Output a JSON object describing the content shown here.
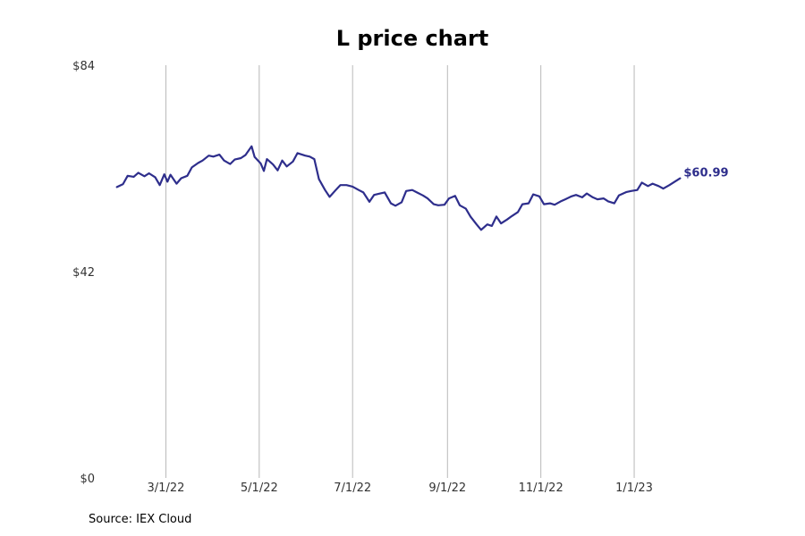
{
  "chart_data": {
    "type": "line",
    "title": "L price chart",
    "xlabel": "",
    "ylabel": "",
    "ylim": [
      0,
      84
    ],
    "yticks": [
      {
        "value": 0,
        "label": "$0"
      },
      {
        "value": 42,
        "label": "$42"
      },
      {
        "value": 84,
        "label": "$84"
      }
    ],
    "xlim": [
      "2022-01-20",
      "2023-03-01"
    ],
    "xticks": [
      {
        "date": "2022-03-01",
        "label": "3/1/22"
      },
      {
        "date": "2022-05-01",
        "label": "5/1/22"
      },
      {
        "date": "2022-07-01",
        "label": "7/1/22"
      },
      {
        "date": "2022-09-01",
        "label": "9/1/22"
      },
      {
        "date": "2022-11-01",
        "label": "11/1/22"
      },
      {
        "date": "2023-01-01",
        "label": "1/1/23"
      }
    ],
    "grid": "vertical",
    "series": [
      {
        "color": "#2e2e8c",
        "end_label": "$60.99",
        "points": [
          [
            "2022-01-28",
            59.2
          ],
          [
            "2022-02-01",
            59.8
          ],
          [
            "2022-02-04",
            61.5
          ],
          [
            "2022-02-08",
            61.3
          ],
          [
            "2022-02-11",
            62.1
          ],
          [
            "2022-02-15",
            61.4
          ],
          [
            "2022-02-18",
            62.0
          ],
          [
            "2022-02-22",
            61.2
          ],
          [
            "2022-02-25",
            59.6
          ],
          [
            "2022-02-28",
            61.8
          ],
          [
            "2022-03-02",
            60.3
          ],
          [
            "2022-03-04",
            61.7
          ],
          [
            "2022-03-08",
            59.9
          ],
          [
            "2022-03-11",
            61.0
          ],
          [
            "2022-03-15",
            61.5
          ],
          [
            "2022-03-18",
            63.2
          ],
          [
            "2022-03-22",
            64.1
          ],
          [
            "2022-03-25",
            64.6
          ],
          [
            "2022-03-29",
            65.6
          ],
          [
            "2022-04-01",
            65.4
          ],
          [
            "2022-04-05",
            65.8
          ],
          [
            "2022-04-08",
            64.6
          ],
          [
            "2022-04-12",
            63.9
          ],
          [
            "2022-04-15",
            64.8
          ],
          [
            "2022-04-19",
            65.1
          ],
          [
            "2022-04-22",
            65.7
          ],
          [
            "2022-04-26",
            67.5
          ],
          [
            "2022-04-28",
            65.3
          ],
          [
            "2022-05-02",
            64.0
          ],
          [
            "2022-05-04",
            62.5
          ],
          [
            "2022-05-06",
            64.9
          ],
          [
            "2022-05-10",
            63.8
          ],
          [
            "2022-05-13",
            62.6
          ],
          [
            "2022-05-16",
            64.6
          ],
          [
            "2022-05-19",
            63.4
          ],
          [
            "2022-05-23",
            64.4
          ],
          [
            "2022-05-26",
            66.1
          ],
          [
            "2022-05-31",
            65.6
          ],
          [
            "2022-06-03",
            65.4
          ],
          [
            "2022-06-06",
            64.9
          ],
          [
            "2022-06-09",
            60.8
          ],
          [
            "2022-06-13",
            58.6
          ],
          [
            "2022-06-16",
            57.2
          ],
          [
            "2022-06-20",
            58.6
          ],
          [
            "2022-06-23",
            59.6
          ],
          [
            "2022-06-27",
            59.6
          ],
          [
            "2022-07-01",
            59.3
          ],
          [
            "2022-07-05",
            58.6
          ],
          [
            "2022-07-08",
            58.1
          ],
          [
            "2022-07-12",
            56.2
          ],
          [
            "2022-07-15",
            57.6
          ],
          [
            "2022-07-19",
            57.9
          ],
          [
            "2022-07-22",
            58.1
          ],
          [
            "2022-07-26",
            55.9
          ],
          [
            "2022-07-29",
            55.4
          ],
          [
            "2022-08-02",
            56.1
          ],
          [
            "2022-08-05",
            58.4
          ],
          [
            "2022-08-09",
            58.6
          ],
          [
            "2022-08-12",
            58.1
          ],
          [
            "2022-08-16",
            57.5
          ],
          [
            "2022-08-19",
            56.9
          ],
          [
            "2022-08-23",
            55.7
          ],
          [
            "2022-08-26",
            55.5
          ],
          [
            "2022-08-30",
            55.6
          ],
          [
            "2022-09-02",
            56.9
          ],
          [
            "2022-09-06",
            57.4
          ],
          [
            "2022-09-09",
            55.5
          ],
          [
            "2022-09-13",
            54.8
          ],
          [
            "2022-09-16",
            53.2
          ],
          [
            "2022-09-20",
            51.6
          ],
          [
            "2022-09-23",
            50.5
          ],
          [
            "2022-09-27",
            51.6
          ],
          [
            "2022-09-30",
            51.3
          ],
          [
            "2022-10-03",
            53.2
          ],
          [
            "2022-10-06",
            51.8
          ],
          [
            "2022-10-10",
            52.6
          ],
          [
            "2022-10-13",
            53.3
          ],
          [
            "2022-10-17",
            54.1
          ],
          [
            "2022-10-20",
            55.7
          ],
          [
            "2022-10-24",
            55.9
          ],
          [
            "2022-10-27",
            57.7
          ],
          [
            "2022-10-31",
            57.3
          ],
          [
            "2022-11-03",
            55.7
          ],
          [
            "2022-11-07",
            55.9
          ],
          [
            "2022-11-10",
            55.6
          ],
          [
            "2022-11-14",
            56.3
          ],
          [
            "2022-11-17",
            56.7
          ],
          [
            "2022-11-21",
            57.3
          ],
          [
            "2022-11-24",
            57.6
          ],
          [
            "2022-11-28",
            57.1
          ],
          [
            "2022-12-01",
            57.9
          ],
          [
            "2022-12-05",
            57.1
          ],
          [
            "2022-12-08",
            56.7
          ],
          [
            "2022-12-12",
            56.9
          ],
          [
            "2022-12-15",
            56.3
          ],
          [
            "2022-12-19",
            55.9
          ],
          [
            "2022-12-22",
            57.5
          ],
          [
            "2022-12-27",
            58.2
          ],
          [
            "2022-12-30",
            58.4
          ],
          [
            "2023-01-03",
            58.6
          ],
          [
            "2023-01-06",
            60.1
          ],
          [
            "2023-01-10",
            59.4
          ],
          [
            "2023-01-13",
            59.9
          ],
          [
            "2023-01-17",
            59.4
          ],
          [
            "2023-01-20",
            58.9
          ],
          [
            "2023-01-24",
            59.6
          ],
          [
            "2023-01-27",
            60.2
          ],
          [
            "2023-01-31",
            60.99
          ]
        ]
      }
    ],
    "source": "Source: IEX Cloud"
  }
}
